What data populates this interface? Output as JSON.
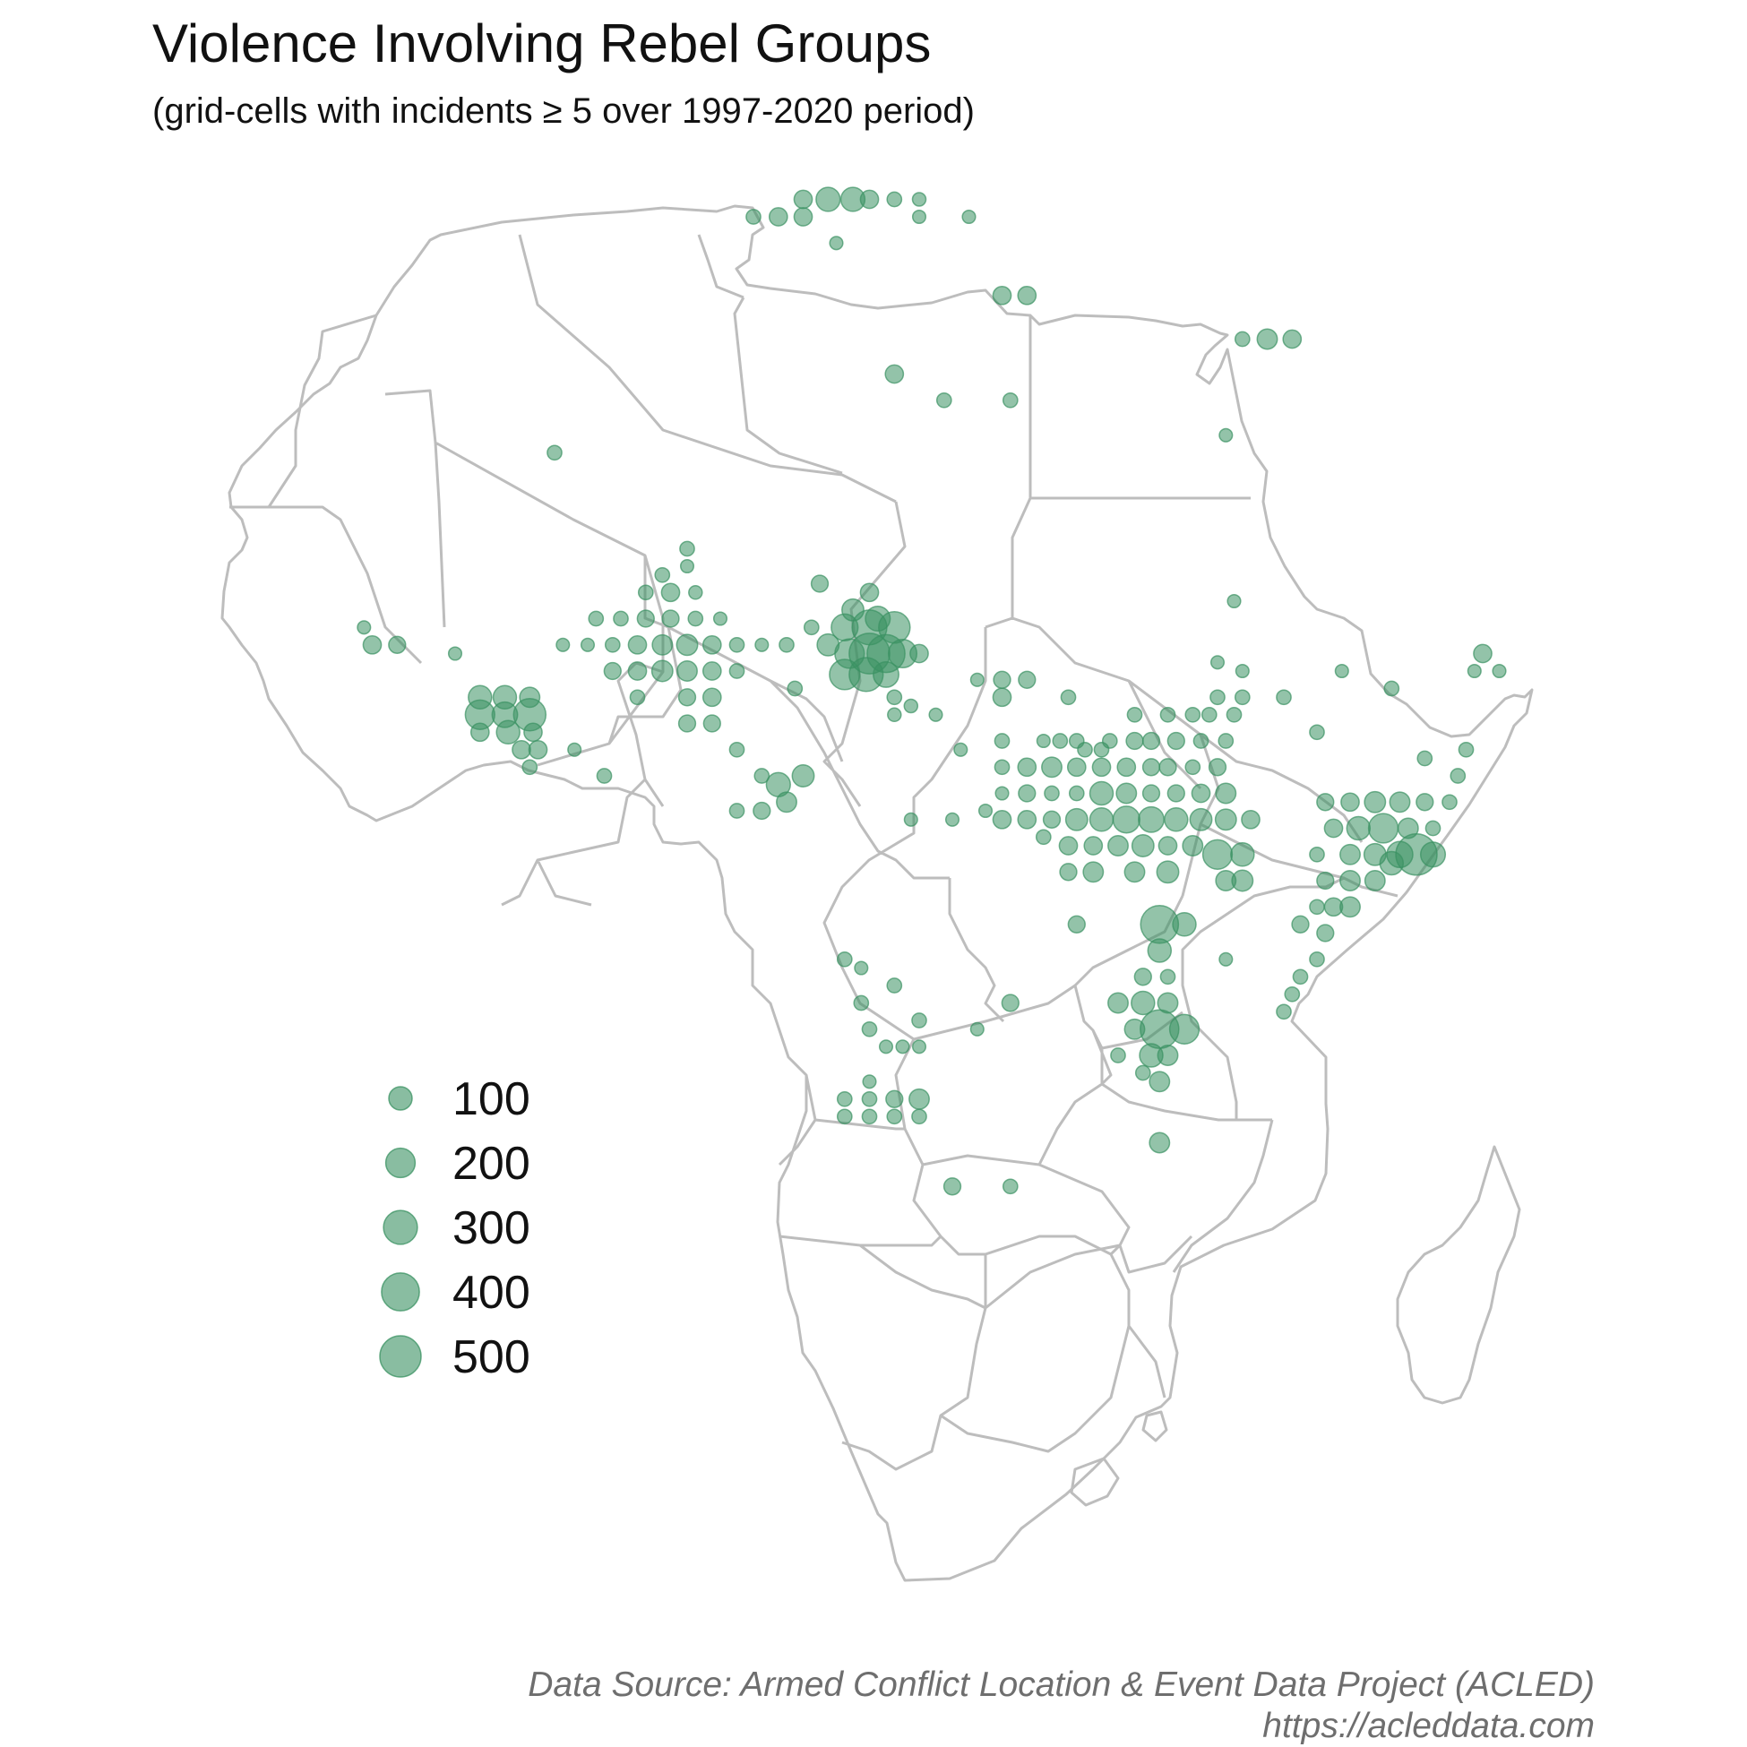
{
  "title": "Violence Involving Rebel Groups",
  "subtitle": "(grid-cells with incidents ≥ 5 over 1997-2020 period)",
  "caption": {
    "line1": "Data Source: Armed Conflict Location & Event Data Project (ACLED)",
    "line2": "https://acleddata.com"
  },
  "colors": {
    "point": "#3a9162",
    "border": "#bdbdbd",
    "text": "#111111",
    "caption": "#6e6e6e"
  },
  "legend": [
    {
      "label": "100",
      "value": 100
    },
    {
      "label": "200",
      "value": 200
    },
    {
      "label": "300",
      "value": 300
    },
    {
      "label": "400",
      "value": 400
    },
    {
      "label": "500",
      "value": 500
    }
  ],
  "chart_data": {
    "type": "scatter",
    "x_unit": "degrees longitude",
    "y_unit": "degrees latitude",
    "size_variable": "incidents",
    "points": [
      {
        "x": 9.0,
        "y": 37.0,
        "v": 40
      },
      {
        "x": 10.5,
        "y": 37.0,
        "v": 110
      },
      {
        "x": 12.0,
        "y": 37.0,
        "v": 110
      },
      {
        "x": 13.0,
        "y": 37.0,
        "v": 40
      },
      {
        "x": 14.5,
        "y": 37.0,
        "v": 15
      },
      {
        "x": 16.0,
        "y": 37.0,
        "v": 10
      },
      {
        "x": 6.0,
        "y": 36.0,
        "v": 15
      },
      {
        "x": 7.5,
        "y": 36.0,
        "v": 40
      },
      {
        "x": 9.0,
        "y": 36.0,
        "v": 40
      },
      {
        "x": 16.0,
        "y": 36.0,
        "v": 8
      },
      {
        "x": 19.0,
        "y": 36.0,
        "v": 8
      },
      {
        "x": 11.0,
        "y": 34.5,
        "v": 8
      },
      {
        "x": 21.0,
        "y": 31.5,
        "v": 40
      },
      {
        "x": 22.5,
        "y": 31.5,
        "v": 40
      },
      {
        "x": 35.5,
        "y": 29.0,
        "v": 15
      },
      {
        "x": 37.0,
        "y": 29.0,
        "v": 60
      },
      {
        "x": 38.5,
        "y": 29.0,
        "v": 40
      },
      {
        "x": 14.5,
        "y": 27.0,
        "v": 40
      },
      {
        "x": 17.5,
        "y": 25.5,
        "v": 15
      },
      {
        "x": 21.5,
        "y": 25.5,
        "v": 15
      },
      {
        "x": -6.0,
        "y": 22.5,
        "v": 15
      },
      {
        "x": 34.5,
        "y": 23.5,
        "v": 8
      },
      {
        "x": -3.5,
        "y": 13.0,
        "v": 15
      },
      {
        "x": -2.0,
        "y": 13.0,
        "v": 15
      },
      {
        "x": -0.5,
        "y": 13.0,
        "v": 30
      },
      {
        "x": 1.0,
        "y": 13.0,
        "v": 30
      },
      {
        "x": 2.5,
        "y": 13.0,
        "v": 15
      },
      {
        "x": 4.0,
        "y": 13.0,
        "v": 8
      },
      {
        "x": -0.5,
        "y": 14.5,
        "v": 15
      },
      {
        "x": 1.0,
        "y": 14.5,
        "v": 40
      },
      {
        "x": 2.5,
        "y": 14.5,
        "v": 10
      },
      {
        "x": 0.5,
        "y": 15.5,
        "v": 15
      },
      {
        "x": 2.0,
        "y": 16.0,
        "v": 8
      },
      {
        "x": 2.0,
        "y": 17.0,
        "v": 15
      },
      {
        "x": -4.0,
        "y": 11.5,
        "v": 8
      },
      {
        "x": -2.5,
        "y": 11.5,
        "v": 15
      },
      {
        "x": -1.0,
        "y": 11.5,
        "v": 40
      },
      {
        "x": 0.5,
        "y": 11.5,
        "v": 60
      },
      {
        "x": 2.0,
        "y": 11.5,
        "v": 70
      },
      {
        "x": 3.5,
        "y": 11.5,
        "v": 40
      },
      {
        "x": 5.0,
        "y": 11.5,
        "v": 15
      },
      {
        "x": 6.5,
        "y": 11.5,
        "v": 8
      },
      {
        "x": -5.5,
        "y": 11.5,
        "v": 8
      },
      {
        "x": -2.5,
        "y": 10.0,
        "v": 30
      },
      {
        "x": -1.0,
        "y": 10.0,
        "v": 40
      },
      {
        "x": 0.5,
        "y": 10.0,
        "v": 70
      },
      {
        "x": 2.0,
        "y": 10.0,
        "v": 60
      },
      {
        "x": 3.5,
        "y": 10.0,
        "v": 40
      },
      {
        "x": 5.0,
        "y": 10.0,
        "v": 15
      },
      {
        "x": -1.0,
        "y": 8.5,
        "v": 15
      },
      {
        "x": 2.0,
        "y": 8.5,
        "v": 30
      },
      {
        "x": 3.5,
        "y": 8.5,
        "v": 40
      },
      {
        "x": 2.0,
        "y": 7.0,
        "v": 30
      },
      {
        "x": 3.5,
        "y": 7.0,
        "v": 30
      },
      {
        "x": -12.0,
        "y": 11.0,
        "v": 8
      },
      {
        "x": -17.5,
        "y": 12.5,
        "v": 8
      },
      {
        "x": -17.0,
        "y": 11.5,
        "v": 40
      },
      {
        "x": -15.5,
        "y": 11.5,
        "v": 30
      },
      {
        "x": -10.5,
        "y": 8.5,
        "v": 100
      },
      {
        "x": -9.0,
        "y": 8.5,
        "v": 100
      },
      {
        "x": -7.5,
        "y": 8.5,
        "v": 60
      },
      {
        "x": -10.5,
        "y": 7.5,
        "v": 200
      },
      {
        "x": -9.0,
        "y": 7.5,
        "v": 130
      },
      {
        "x": -7.5,
        "y": 7.5,
        "v": 260
      },
      {
        "x": -10.5,
        "y": 6.5,
        "v": 40
      },
      {
        "x": -8.8,
        "y": 6.5,
        "v": 100
      },
      {
        "x": -7.3,
        "y": 6.5,
        "v": 40
      },
      {
        "x": -8.0,
        "y": 5.5,
        "v": 40
      },
      {
        "x": -7.0,
        "y": 5.5,
        "v": 40
      },
      {
        "x": -4.8,
        "y": 5.5,
        "v": 8
      },
      {
        "x": -7.5,
        "y": 4.5,
        "v": 15
      },
      {
        "x": -3.0,
        "y": 4.0,
        "v": 15
      },
      {
        "x": 10.0,
        "y": 15.0,
        "v": 30
      },
      {
        "x": 13.0,
        "y": 14.5,
        "v": 40
      },
      {
        "x": 9.5,
        "y": 12.5,
        "v": 15
      },
      {
        "x": 12.0,
        "y": 13.5,
        "v": 80
      },
      {
        "x": 13.5,
        "y": 13.0,
        "v": 120
      },
      {
        "x": 11.5,
        "y": 12.5,
        "v": 150
      },
      {
        "x": 13.0,
        "y": 12.5,
        "v": 320
      },
      {
        "x": 14.5,
        "y": 12.5,
        "v": 240
      },
      {
        "x": 10.5,
        "y": 11.5,
        "v": 80
      },
      {
        "x": 11.8,
        "y": 11.0,
        "v": 200
      },
      {
        "x": 13.0,
        "y": 11.0,
        "v": 480
      },
      {
        "x": 14.0,
        "y": 11.0,
        "v": 400
      },
      {
        "x": 15.0,
        "y": 11.0,
        "v": 180
      },
      {
        "x": 16.0,
        "y": 11.0,
        "v": 40
      },
      {
        "x": 11.5,
        "y": 9.8,
        "v": 220
      },
      {
        "x": 12.8,
        "y": 9.8,
        "v": 300
      },
      {
        "x": 14.0,
        "y": 9.8,
        "v": 130
      },
      {
        "x": 8.0,
        "y": 11.5,
        "v": 15
      },
      {
        "x": 8.5,
        "y": 9.0,
        "v": 15
      },
      {
        "x": 14.5,
        "y": 8.5,
        "v": 15
      },
      {
        "x": 15.5,
        "y": 8.0,
        "v": 10
      },
      {
        "x": 14.5,
        "y": 7.5,
        "v": 10
      },
      {
        "x": 9.0,
        "y": 4.0,
        "v": 80
      },
      {
        "x": 8.0,
        "y": 2.5,
        "v": 60
      },
      {
        "x": 6.5,
        "y": 4.0,
        "v": 15
      },
      {
        "x": 7.5,
        "y": 3.5,
        "v": 110
      },
      {
        "x": 5.0,
        "y": 5.5,
        "v": 15
      },
      {
        "x": 5.0,
        "y": 2.0,
        "v": 15
      },
      {
        "x": 6.5,
        "y": 2.0,
        "v": 30
      },
      {
        "x": 17.0,
        "y": 7.5,
        "v": 8
      },
      {
        "x": 18.5,
        "y": 5.5,
        "v": 8
      },
      {
        "x": 15.5,
        "y": 1.5,
        "v": 8
      },
      {
        "x": 18.0,
        "y": 1.5,
        "v": 8
      },
      {
        "x": 20.0,
        "y": 2.0,
        "v": 8
      },
      {
        "x": 21.0,
        "y": 6.0,
        "v": 15
      },
      {
        "x": 21.0,
        "y": 4.5,
        "v": 15
      },
      {
        "x": 22.5,
        "y": 4.5,
        "v": 40
      },
      {
        "x": 24.0,
        "y": 4.5,
        "v": 60
      },
      {
        "x": 25.5,
        "y": 4.5,
        "v": 40
      },
      {
        "x": 27.0,
        "y": 4.5,
        "v": 40
      },
      {
        "x": 28.5,
        "y": 4.5,
        "v": 40
      },
      {
        "x": 30.0,
        "y": 4.5,
        "v": 30
      },
      {
        "x": 31.0,
        "y": 4.5,
        "v": 30
      },
      {
        "x": 32.5,
        "y": 4.5,
        "v": 15
      },
      {
        "x": 34.0,
        "y": 4.5,
        "v": 30
      },
      {
        "x": 21.0,
        "y": 3.0,
        "v": 8
      },
      {
        "x": 22.5,
        "y": 3.0,
        "v": 30
      },
      {
        "x": 24.0,
        "y": 3.0,
        "v": 15
      },
      {
        "x": 25.5,
        "y": 3.0,
        "v": 15
      },
      {
        "x": 27.0,
        "y": 3.0,
        "v": 100
      },
      {
        "x": 28.5,
        "y": 3.0,
        "v": 60
      },
      {
        "x": 30.0,
        "y": 3.0,
        "v": 30
      },
      {
        "x": 31.5,
        "y": 3.0,
        "v": 30
      },
      {
        "x": 33.0,
        "y": 3.0,
        "v": 40
      },
      {
        "x": 34.5,
        "y": 3.0,
        "v": 60
      },
      {
        "x": 21.0,
        "y": 1.5,
        "v": 40
      },
      {
        "x": 22.5,
        "y": 1.5,
        "v": 40
      },
      {
        "x": 24.0,
        "y": 1.5,
        "v": 30
      },
      {
        "x": 25.5,
        "y": 1.5,
        "v": 80
      },
      {
        "x": 27.0,
        "y": 1.5,
        "v": 100
      },
      {
        "x": 28.5,
        "y": 1.5,
        "v": 150
      },
      {
        "x": 30.0,
        "y": 1.5,
        "v": 130
      },
      {
        "x": 31.5,
        "y": 1.5,
        "v": 100
      },
      {
        "x": 33.0,
        "y": 1.5,
        "v": 80
      },
      {
        "x": 34.5,
        "y": 1.5,
        "v": 70
      },
      {
        "x": 36.0,
        "y": 1.5,
        "v": 40
      },
      {
        "x": 23.5,
        "y": 0.5,
        "v": 15
      },
      {
        "x": 25.0,
        "y": 0.0,
        "v": 40
      },
      {
        "x": 26.5,
        "y": 0.0,
        "v": 40
      },
      {
        "x": 28.0,
        "y": 0.0,
        "v": 60
      },
      {
        "x": 29.5,
        "y": 0.0,
        "v": 80
      },
      {
        "x": 31.0,
        "y": 0.0,
        "v": 40
      },
      {
        "x": 32.5,
        "y": 0.0,
        "v": 60
      },
      {
        "x": 34.0,
        "y": -0.5,
        "v": 200
      },
      {
        "x": 35.5,
        "y": -0.5,
        "v": 100
      },
      {
        "x": 25.0,
        "y": -1.5,
        "v": 30
      },
      {
        "x": 26.5,
        "y": -1.5,
        "v": 60
      },
      {
        "x": 29.0,
        "y": -1.5,
        "v": 60
      },
      {
        "x": 31.0,
        "y": -1.5,
        "v": 80
      },
      {
        "x": 34.5,
        "y": -2.0,
        "v": 60
      },
      {
        "x": 35.5,
        "y": -2.0,
        "v": 70
      },
      {
        "x": 25.5,
        "y": -4.5,
        "v": 30
      },
      {
        "x": 30.5,
        "y": -4.5,
        "v": 400
      },
      {
        "x": 32.0,
        "y": -4.5,
        "v": 100
      },
      {
        "x": 30.5,
        "y": -6.0,
        "v": 100
      },
      {
        "x": 29.5,
        "y": -7.5,
        "v": 30
      },
      {
        "x": 31.0,
        "y": -7.5,
        "v": 15
      },
      {
        "x": 28.0,
        "y": -9.0,
        "v": 60
      },
      {
        "x": 29.5,
        "y": -9.0,
        "v": 100
      },
      {
        "x": 31.0,
        "y": -9.0,
        "v": 60
      },
      {
        "x": 29.0,
        "y": -10.5,
        "v": 60
      },
      {
        "x": 30.5,
        "y": -10.5,
        "v": 420
      },
      {
        "x": 32.0,
        "y": -10.5,
        "v": 200
      },
      {
        "x": 30.0,
        "y": -12.0,
        "v": 100
      },
      {
        "x": 31.0,
        "y": -12.0,
        "v": 60
      },
      {
        "x": 28.0,
        "y": -12.0,
        "v": 15
      },
      {
        "x": 29.5,
        "y": -13.0,
        "v": 15
      },
      {
        "x": 30.5,
        "y": -13.5,
        "v": 60
      },
      {
        "x": 30.5,
        "y": -17.0,
        "v": 60
      },
      {
        "x": 21.0,
        "y": 9.5,
        "v": 30
      },
      {
        "x": 22.5,
        "y": 9.5,
        "v": 30
      },
      {
        "x": 21.0,
        "y": 8.5,
        "v": 40
      },
      {
        "x": 25.0,
        "y": 8.5,
        "v": 15
      },
      {
        "x": 19.5,
        "y": 9.5,
        "v": 8
      },
      {
        "x": 29.0,
        "y": 7.5,
        "v": 15
      },
      {
        "x": 31.0,
        "y": 7.5,
        "v": 15
      },
      {
        "x": 32.5,
        "y": 7.5,
        "v": 15
      },
      {
        "x": 33.5,
        "y": 7.5,
        "v": 15
      },
      {
        "x": 35.0,
        "y": 7.5,
        "v": 15
      },
      {
        "x": 27.5,
        "y": 6.0,
        "v": 15
      },
      {
        "x": 29.0,
        "y": 6.0,
        "v": 30
      },
      {
        "x": 30.0,
        "y": 6.0,
        "v": 30
      },
      {
        "x": 31.5,
        "y": 6.0,
        "v": 30
      },
      {
        "x": 33.0,
        "y": 6.0,
        "v": 15
      },
      {
        "x": 34.5,
        "y": 6.0,
        "v": 15
      },
      {
        "x": 23.5,
        "y": 6.0,
        "v": 8
      },
      {
        "x": 24.5,
        "y": 6.0,
        "v": 15
      },
      {
        "x": 25.5,
        "y": 6.0,
        "v": 15
      },
      {
        "x": 26.0,
        "y": 5.5,
        "v": 15
      },
      {
        "x": 27.0,
        "y": 5.5,
        "v": 15
      },
      {
        "x": 34.0,
        "y": 8.5,
        "v": 15
      },
      {
        "x": 35.5,
        "y": 8.5,
        "v": 15
      },
      {
        "x": 34.0,
        "y": 10.5,
        "v": 8
      },
      {
        "x": 41.5,
        "y": 10.0,
        "v": 8
      },
      {
        "x": 38.0,
        "y": 8.5,
        "v": 15
      },
      {
        "x": 35.5,
        "y": 10.0,
        "v": 8
      },
      {
        "x": 40.0,
        "y": 6.5,
        "v": 15
      },
      {
        "x": 35.0,
        "y": 14.0,
        "v": 8
      },
      {
        "x": 40.5,
        "y": 2.5,
        "v": 30
      },
      {
        "x": 42.0,
        "y": 2.5,
        "v": 40
      },
      {
        "x": 43.5,
        "y": 2.5,
        "v": 70
      },
      {
        "x": 45.0,
        "y": 2.5,
        "v": 60
      },
      {
        "x": 46.5,
        "y": 2.5,
        "v": 30
      },
      {
        "x": 48.0,
        "y": 2.5,
        "v": 15
      },
      {
        "x": 41.0,
        "y": 1.0,
        "v": 40
      },
      {
        "x": 42.5,
        "y": 1.0,
        "v": 100
      },
      {
        "x": 44.0,
        "y": 1.0,
        "v": 200
      },
      {
        "x": 45.5,
        "y": 1.0,
        "v": 60
      },
      {
        "x": 47.0,
        "y": 1.0,
        "v": 15
      },
      {
        "x": 42.0,
        "y": -0.5,
        "v": 60
      },
      {
        "x": 43.5,
        "y": -0.5,
        "v": 80
      },
      {
        "x": 45.0,
        "y": -0.5,
        "v": 140
      },
      {
        "x": 46.0,
        "y": -0.5,
        "v": 500
      },
      {
        "x": 47.0,
        "y": -0.5,
        "v": 120
      },
      {
        "x": 40.0,
        "y": -0.5,
        "v": 15
      },
      {
        "x": 40.5,
        "y": -2.0,
        "v": 30
      },
      {
        "x": 42.0,
        "y": -2.0,
        "v": 60
      },
      {
        "x": 43.5,
        "y": -2.0,
        "v": 60
      },
      {
        "x": 44.5,
        "y": -1.0,
        "v": 100
      },
      {
        "x": 40.0,
        "y": -3.5,
        "v": 15
      },
      {
        "x": 41.0,
        "y": -3.5,
        "v": 40
      },
      {
        "x": 42.0,
        "y": -3.5,
        "v": 60
      },
      {
        "x": 39.0,
        "y": -4.5,
        "v": 30
      },
      {
        "x": 40.5,
        "y": -5.0,
        "v": 30
      },
      {
        "x": 40.0,
        "y": -6.5,
        "v": 15
      },
      {
        "x": 39.0,
        "y": -7.5,
        "v": 15
      },
      {
        "x": 38.5,
        "y": -8.5,
        "v": 15
      },
      {
        "x": 38.0,
        "y": -9.5,
        "v": 15
      },
      {
        "x": 34.5,
        "y": -6.5,
        "v": 8
      },
      {
        "x": 48.5,
        "y": 4.0,
        "v": 15
      },
      {
        "x": 49.0,
        "y": 5.5,
        "v": 15
      },
      {
        "x": 46.5,
        "y": 5.0,
        "v": 15
      },
      {
        "x": 50.0,
        "y": 11.0,
        "v": 40
      },
      {
        "x": 49.5,
        "y": 10.0,
        "v": 8
      },
      {
        "x": 51.0,
        "y": 10.0,
        "v": 8
      },
      {
        "x": 44.5,
        "y": 9.0,
        "v": 15
      },
      {
        "x": 12.5,
        "y": -9.0,
        "v": 15
      },
      {
        "x": 14.5,
        "y": -8.0,
        "v": 15
      },
      {
        "x": 16.0,
        "y": -10.0,
        "v": 15
      },
      {
        "x": 13.0,
        "y": -10.5,
        "v": 15
      },
      {
        "x": 14.0,
        "y": -11.5,
        "v": 8
      },
      {
        "x": 15.0,
        "y": -11.5,
        "v": 8
      },
      {
        "x": 16.0,
        "y": -11.5,
        "v": 8
      },
      {
        "x": 19.5,
        "y": -10.5,
        "v": 8
      },
      {
        "x": 21.5,
        "y": -9.0,
        "v": 30
      },
      {
        "x": 13.0,
        "y": -13.5,
        "v": 8
      },
      {
        "x": 11.5,
        "y": -14.5,
        "v": 15
      },
      {
        "x": 13.0,
        "y": -14.5,
        "v": 15
      },
      {
        "x": 14.5,
        "y": -14.5,
        "v": 30
      },
      {
        "x": 16.0,
        "y": -14.5,
        "v": 60
      },
      {
        "x": 11.5,
        "y": -15.5,
        "v": 15
      },
      {
        "x": 13.0,
        "y": -15.5,
        "v": 15
      },
      {
        "x": 14.5,
        "y": -15.5,
        "v": 15
      },
      {
        "x": 16.0,
        "y": -15.5,
        "v": 15
      },
      {
        "x": 11.5,
        "y": -6.5,
        "v": 15
      },
      {
        "x": 12.5,
        "y": -7.0,
        "v": 8
      },
      {
        "x": 18.0,
        "y": -19.5,
        "v": 30
      },
      {
        "x": 21.5,
        "y": -19.5,
        "v": 15
      }
    ]
  }
}
